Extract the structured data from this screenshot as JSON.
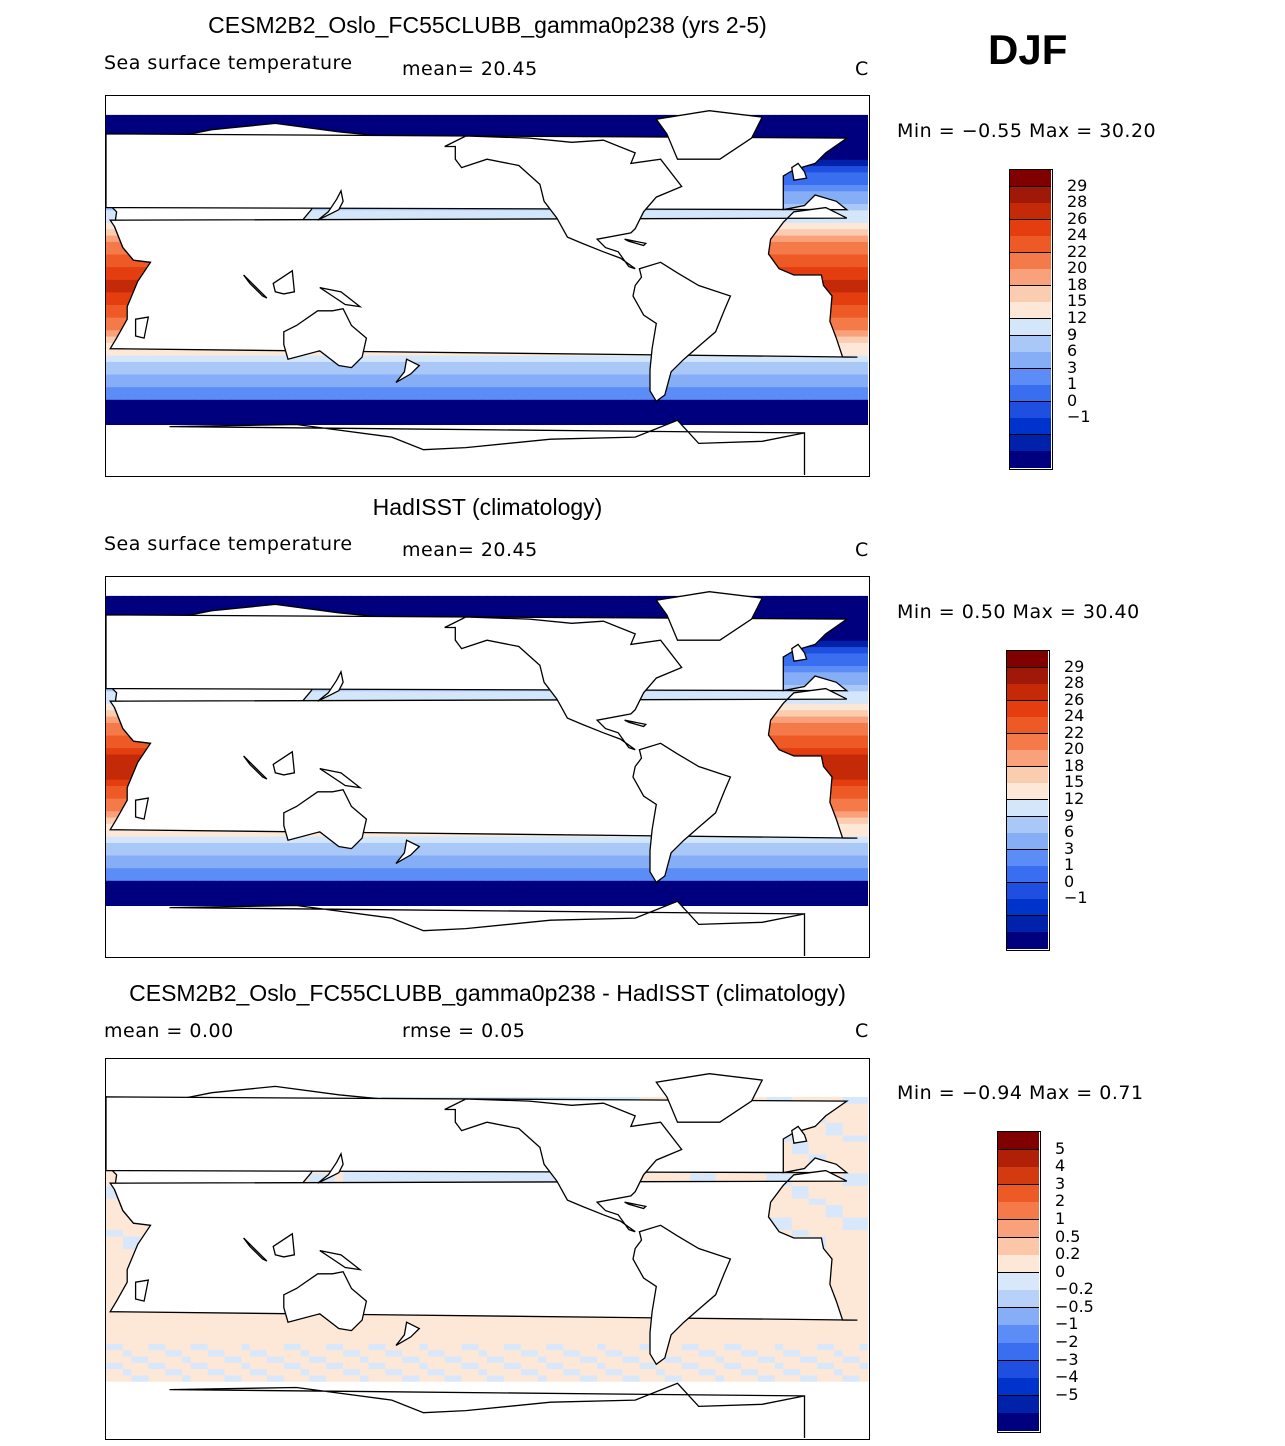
{
  "season": "DJF",
  "colors": {
    "sst_levels": [
      "#00007f",
      "#0022aa",
      "#0033cc",
      "#1f4fe0",
      "#3a6ef0",
      "#5c8cf5",
      "#86aef7",
      "#a9c8f8",
      "#d4e6fa",
      "#fde8d8",
      "#fbcdb0",
      "#f9a17a",
      "#f47a4a",
      "#ee5a26",
      "#e43e10",
      "#c42a08",
      "#a01808",
      "#800000"
    ],
    "diff_levels": [
      "#00007f",
      "#0022aa",
      "#0033cc",
      "#1f4fe0",
      "#3a6ef0",
      "#5c8cf5",
      "#86aef7",
      "#b8d1f8",
      "#d8e8fa",
      "#fde8d8",
      "#fbc7a8",
      "#f9a17a",
      "#f47a4a",
      "#ee5a26",
      "#d43a10",
      "#b02008",
      "#800000"
    ],
    "land": "#ffffff"
  },
  "panels": [
    {
      "title": "CESM2B2_Oslo_FC55CLUBB_gamma0p238 (yrs 2-5)",
      "left_label": "Sea surface temperature",
      "mid_label": "mean=   20.45",
      "units": "C",
      "minmax": "Min =   −0.55 Max =   30.20",
      "colorbar_labels": [
        "29",
        "28",
        "26",
        "24",
        "22",
        "20",
        "18",
        "15",
        "12",
        "9",
        "6",
        "3",
        "1",
        "0",
        "−1"
      ],
      "kind": "sst",
      "tropical_max": 29.5
    },
    {
      "title": "HadISST (climatology)",
      "left_label": "Sea surface temperature",
      "mid_label": "mean=   20.45",
      "units": "C",
      "minmax": "Min =    0.50 Max =   30.40",
      "colorbar_labels": [
        "29",
        "28",
        "26",
        "24",
        "22",
        "20",
        "18",
        "15",
        "12",
        "9",
        "6",
        "3",
        "1",
        "0",
        "−1"
      ],
      "kind": "sst",
      "tropical_max": 29.8
    },
    {
      "title": "CESM2B2_Oslo_FC55CLUBB_gamma0p238 - HadISST (climatology)",
      "left_label": "mean =    0.00",
      "mid_label": "rmse =    0.05",
      "units": "C",
      "minmax": "Min =   −0.94 Max =    0.71",
      "colorbar_labels": [
        "5",
        "4",
        "3",
        "2",
        "1",
        "0.5",
        "0.2",
        "0",
        "−0.2",
        "−0.5",
        "−1",
        "−2",
        "−3",
        "−4",
        "−5"
      ],
      "kind": "diff"
    }
  ]
}
